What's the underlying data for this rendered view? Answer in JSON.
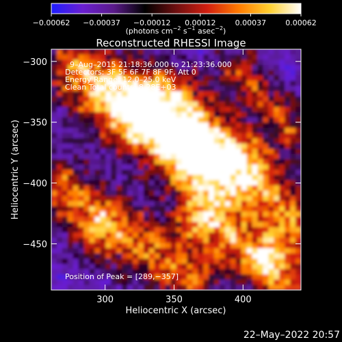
{
  "chart_data": {
    "type": "heatmap",
    "title": "Reconstructed RHESSI Image",
    "xlabel": "Heliocentric X (arcsec)",
    "ylabel": "Heliocentric Y (arcsec)",
    "xlim": [
      261,
      442
    ],
    "ylim": [
      -488,
      -290
    ],
    "x_ticks": [
      {
        "value": 300,
        "label": "300"
      },
      {
        "value": 350,
        "label": "350"
      },
      {
        "value": 400,
        "label": "400"
      }
    ],
    "y_ticks": [
      {
        "value": -300,
        "label": "−300"
      },
      {
        "value": -350,
        "label": "−350"
      },
      {
        "value": -400,
        "label": "−400"
      },
      {
        "value": -450,
        "label": "−450"
      }
    ],
    "colorbar": {
      "min": -0.00062,
      "max": 0.00062,
      "tick_values": [
        -0.00062,
        -0.00037,
        -0.00012,
        0.00012,
        0.00037,
        0.00062
      ],
      "tick_labels": [
        "−0.00062",
        "−0.00037",
        "−0.00012",
        "0.00012",
        "0.00037",
        "0.00062"
      ],
      "unit_main": "(photons cm",
      "unit_sup1": "−2",
      "unit_mid": " s",
      "unit_sup2": "−1",
      "unit_end": " asec",
      "unit_sup3": "−2",
      "unit_close": ")",
      "colors": [
        "#1e1eff",
        "#6a1fd0",
        "#5a1a8a",
        "#000000",
        "#6e0f10",
        "#d21f10",
        "#ff7a00",
        "#ffd030",
        "#ffffff"
      ]
    },
    "annotations": {
      "time_range": "9–Aug–2015 21:18:36.000 to 21:23:36.000",
      "detectors": "Detectors: 3F 5F 6F 7F 8F 9F, Att 0",
      "energy_range": "Energy Range: 12.0–25.0 keV",
      "method": "Clean    Total counts: 8.28E+03",
      "peak": "Position of Peak = [289,−357]"
    },
    "peak": {
      "x": 289,
      "y": -357
    },
    "grid": false
  },
  "footer": {
    "timestamp": "22–May–2022 20:57"
  }
}
